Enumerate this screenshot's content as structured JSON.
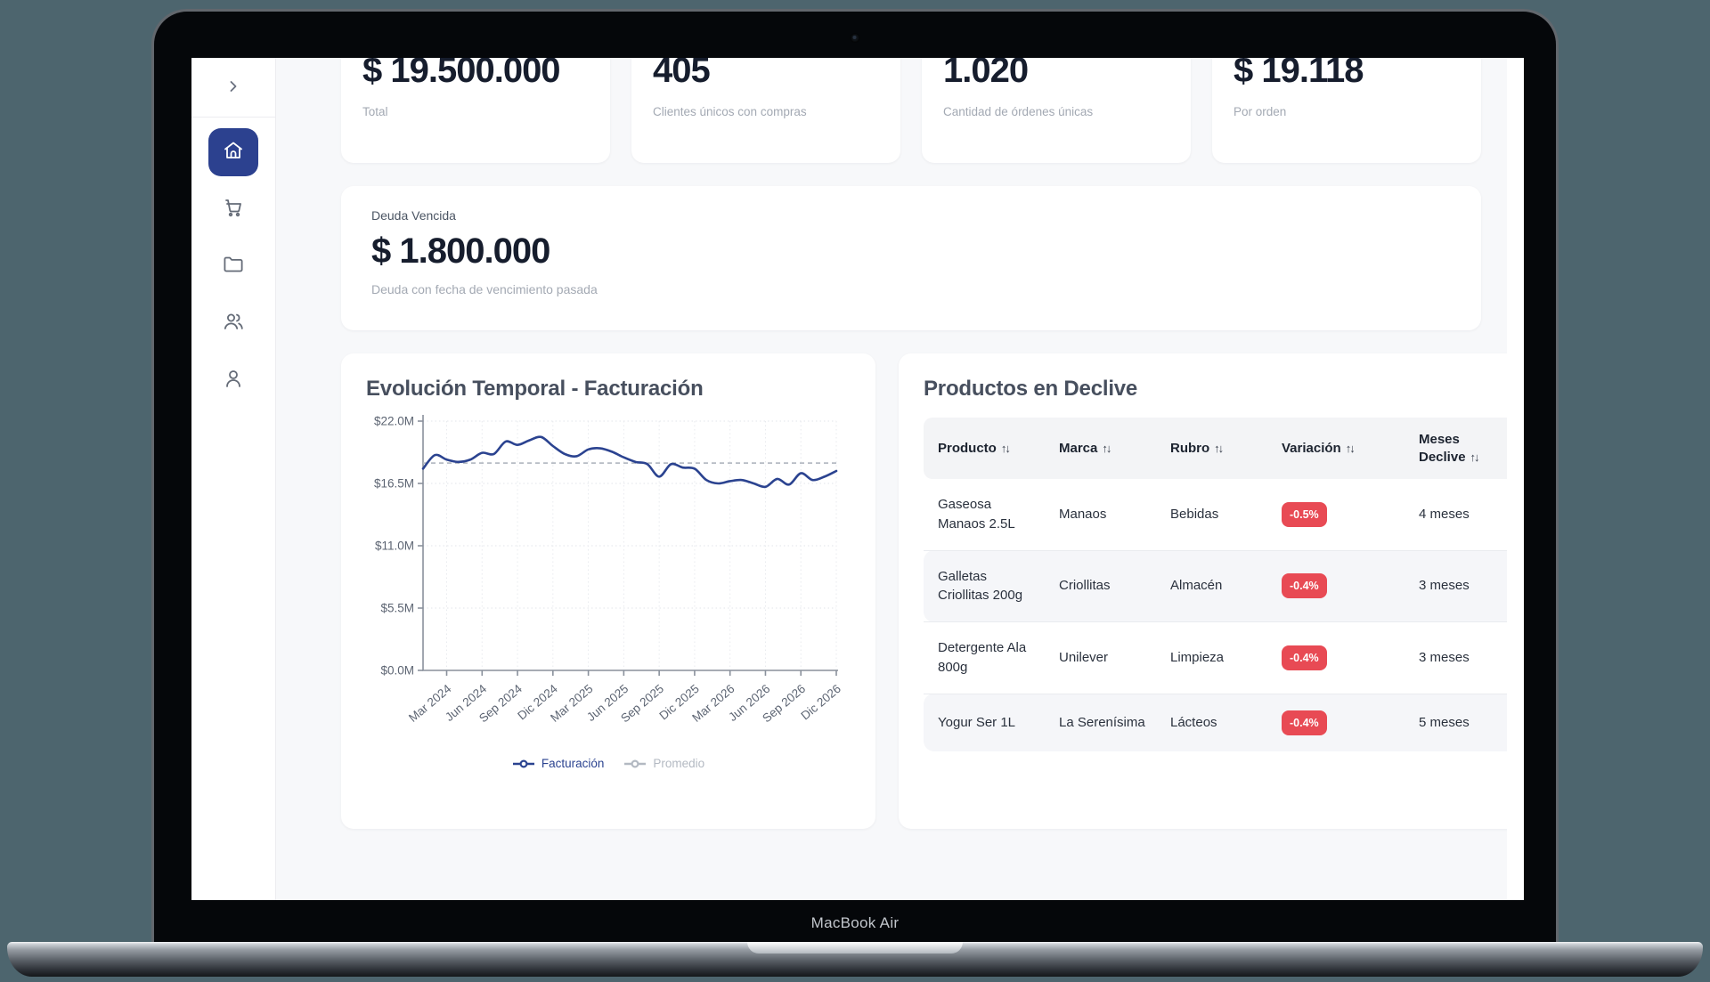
{
  "device": {
    "label": "MacBook Air"
  },
  "theme": {
    "accent": "#2c418f",
    "badge_color": "#e84a54",
    "line_color": "#2b4390",
    "muted_color": "#b6bcc4"
  },
  "sidebar": {
    "items": [
      {
        "icon": "home",
        "active": true
      },
      {
        "icon": "shopping-cart",
        "active": false
      },
      {
        "icon": "folder",
        "active": false
      },
      {
        "icon": "users",
        "active": false
      },
      {
        "icon": "user",
        "active": false
      }
    ]
  },
  "stats": [
    {
      "value": "$ 19.500.000",
      "label": "Total"
    },
    {
      "value": "405",
      "label": "Clientes únicos con compras"
    },
    {
      "value": "1.020",
      "label": "Cantidad de órdenes únicas"
    },
    {
      "value": "$ 19.118",
      "label": "Por orden"
    }
  ],
  "debt_card": {
    "title": "Deuda Vencida",
    "value": "$ 1.800.000",
    "subtitle": "Deuda con fecha de vencimiento pasada"
  },
  "chart_data": {
    "type": "line",
    "title": "Evolución Temporal - Facturación",
    "ylabel": "",
    "xlabel": "",
    "ylim": [
      0,
      22
    ],
    "unit": "millions",
    "grid": true,
    "legend_position": "bottom",
    "y_ticks": [
      {
        "label": "$22.0M",
        "value": 22
      },
      {
        "label": "$16.5M",
        "value": 16.5
      },
      {
        "label": "$11.0M",
        "value": 11
      },
      {
        "label": "$5.5M",
        "value": 5.5
      },
      {
        "label": "$0.0M",
        "value": 0
      }
    ],
    "x_ticks": [
      "Mar 2024",
      "Jun 2024",
      "Sep 2024",
      "Dic 2024",
      "Mar 2025",
      "Jun 2025",
      "Sep 2025",
      "Dic 2025",
      "Mar 2026",
      "Jun 2026",
      "Sep 2026",
      "Dic 2026"
    ],
    "x_tick_first_index": 2,
    "x_tick_every": 3,
    "series": [
      {
        "name": "Facturación",
        "color": "#2b4390",
        "style": "solid",
        "values": [
          17.8,
          19.0,
          18.6,
          18.4,
          18.6,
          19.2,
          19.1,
          20.2,
          19.9,
          20.3,
          20.6,
          19.8,
          19.1,
          18.9,
          19.5,
          19.6,
          19.3,
          18.8,
          18.4,
          18.2,
          17.1,
          18.2,
          17.9,
          17.8,
          16.8,
          16.5,
          16.7,
          16.8,
          16.5,
          16.2,
          16.9,
          16.4,
          17.4,
          16.8,
          17.1,
          17.6
        ]
      },
      {
        "name": "Promedio",
        "color": "#b6bcc4",
        "style": "dashed",
        "average": 18.3
      }
    ],
    "legend": [
      {
        "label": "Facturación",
        "color": "#2b4390"
      },
      {
        "label": "Promedio",
        "color": "#b3b9c2"
      }
    ]
  },
  "products": {
    "title": "Productos en Declive",
    "columns": [
      {
        "label": "Producto",
        "sortable": true
      },
      {
        "label": "Marca",
        "sortable": true
      },
      {
        "label": "Rubro",
        "sortable": true
      },
      {
        "label": "Variación",
        "sortable": true
      },
      {
        "label": "Meses Declive",
        "sortable": true
      }
    ],
    "rows": [
      {
        "producto": "Gaseosa Manaos 2.5L",
        "marca": "Manaos",
        "rubro": "Bebidas",
        "variacion": "-0.5%",
        "meses": "4 meses"
      },
      {
        "producto": "Galletas Criollitas 200g",
        "marca": "Criollitas",
        "rubro": "Almacén",
        "variacion": "-0.4%",
        "meses": "3 meses"
      },
      {
        "producto": "Detergente Ala 800g",
        "marca": "Unilever",
        "rubro": "Limpieza",
        "variacion": "-0.4%",
        "meses": "3 meses"
      },
      {
        "producto": "Yogur Ser 1L",
        "marca": "La Serenísima",
        "rubro": "Lácteos",
        "variacion": "-0.4%",
        "meses": "5 meses"
      }
    ]
  }
}
